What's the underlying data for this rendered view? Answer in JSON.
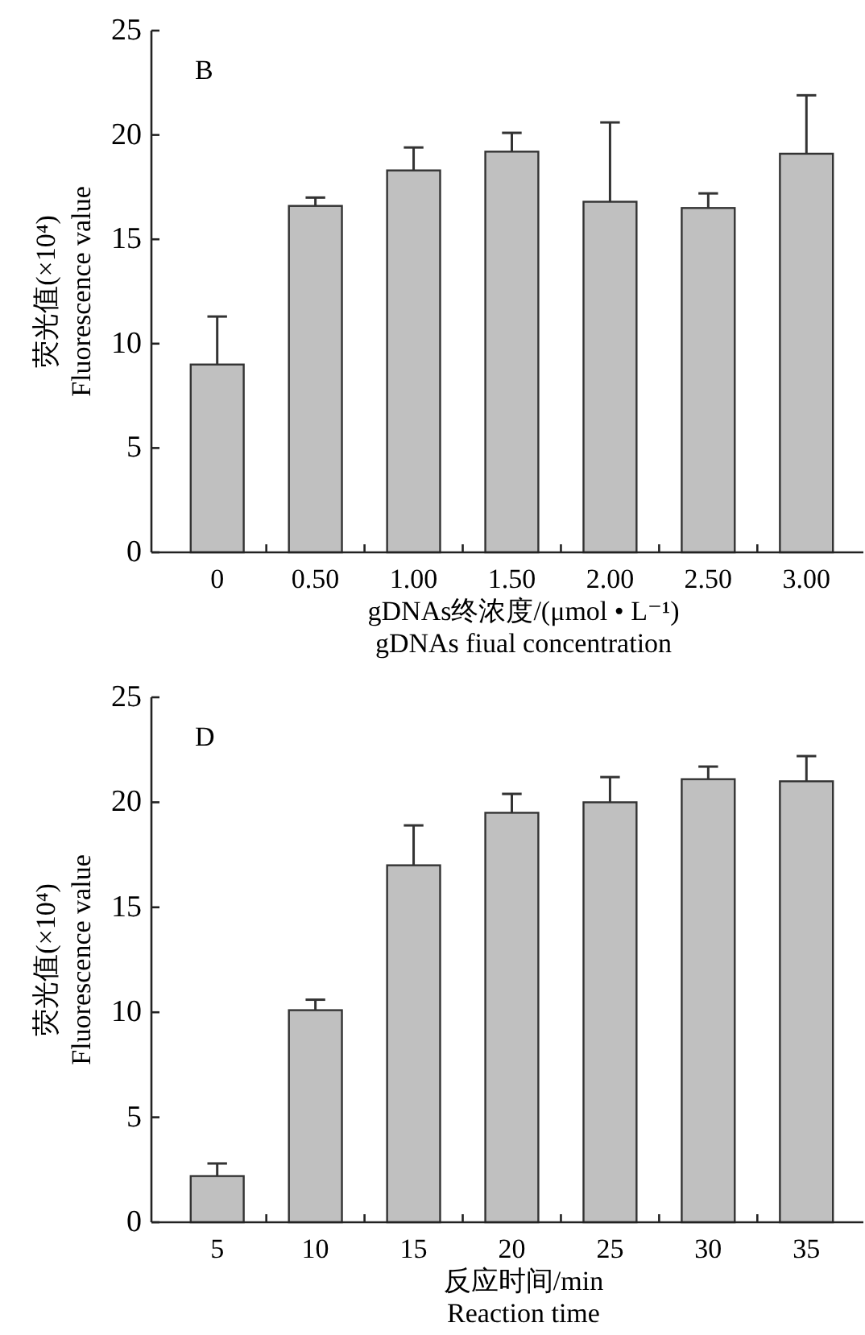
{
  "chart_data": [
    {
      "type": "bar",
      "annotations": [
        "B"
      ],
      "ylabel": "荧光值(×10⁴)\nFluorescence value",
      "xlabel": "gDNAs终浓度/(μmol • L⁻¹)\ngDNAs fiual concentration",
      "categories": [
        "0",
        "0.50",
        "1.00",
        "1.50",
        "2.00",
        "2.50",
        "3.00"
      ],
      "ylim": [
        0,
        25
      ],
      "yticks": [
        0,
        5,
        10,
        15,
        20,
        25
      ],
      "color": "#c0c0c0",
      "values": [
        9.0,
        16.6,
        18.3,
        19.2,
        16.8,
        16.5,
        19.1
      ],
      "errors": [
        [
          9.0,
          11.3
        ],
        [
          16.6,
          17.0
        ],
        [
          18.3,
          19.4
        ],
        [
          19.2,
          20.1
        ],
        [
          16.8,
          20.6
        ],
        [
          16.5,
          17.2
        ],
        [
          19.1,
          21.9
        ]
      ],
      "grid": false
    },
    {
      "type": "bar",
      "annotations": [
        "D"
      ],
      "ylabel": "荧光值(×10⁴)\nFluorescence value",
      "xlabel": "反应时间/min\nReaction time",
      "categories": [
        "5",
        "10",
        "15",
        "20",
        "25",
        "30",
        "35"
      ],
      "ylim": [
        0,
        25
      ],
      "yticks": [
        0,
        5,
        10,
        15,
        20,
        25
      ],
      "color": "#c0c0c0",
      "values": [
        2.2,
        10.1,
        17.0,
        19.5,
        20.0,
        21.1,
        21.0
      ],
      "errors": [
        [
          2.2,
          2.8
        ],
        [
          10.1,
          10.6
        ],
        [
          17.0,
          18.9
        ],
        [
          19.5,
          20.4
        ],
        [
          20.0,
          21.2
        ],
        [
          21.1,
          21.7
        ],
        [
          21.0,
          22.2
        ]
      ],
      "grid": false
    }
  ]
}
